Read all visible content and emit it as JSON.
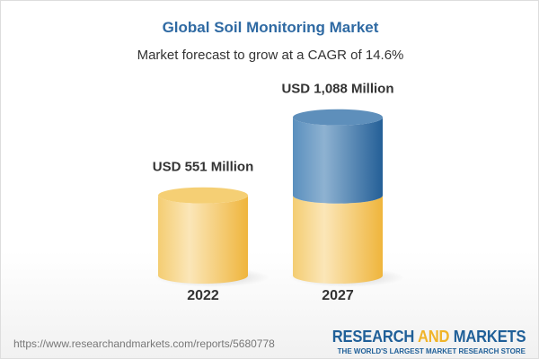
{
  "chart_data": {
    "type": "bar",
    "title": "Global Soil Monitoring Market",
    "subtitle": "Market forecast to grow at a CAGR of 14.6%",
    "categories": [
      "2022",
      "2027"
    ],
    "values": [
      551,
      1088
    ],
    "data_labels": [
      "USD 551 Million",
      "USD 1,088 Million"
    ],
    "unit": "USD Million",
    "style": "3d-cylinder",
    "grid": false,
    "colors": {
      "base": "#f2c55c",
      "growth": "#3f78ab",
      "title": "#2f6aa3"
    }
  },
  "footer": {
    "url": "https://www.researchandmarkets.com/reports/5680778",
    "logo_line1_a": "RESEARCH ",
    "logo_line1_b": "AND",
    "logo_line1_c": " MARKETS",
    "logo_line2": "THE WORLD'S LARGEST MARKET RESEARCH STORE"
  }
}
